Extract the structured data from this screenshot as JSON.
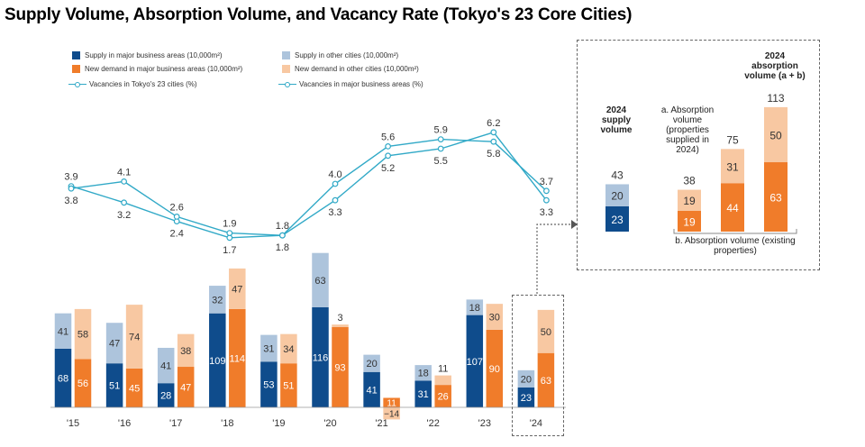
{
  "title": "Supply Volume, Absorption Volume, and Vacancy Rate (Tokyo's 23 Core Cities)",
  "colors": {
    "supply_major": "#0f4c8c",
    "supply_other": "#adc4dc",
    "demand_major": "#f07c2a",
    "demand_other": "#f8c8a2",
    "vacancy_line": "#31a9c7"
  },
  "legend": {
    "supply_major": "Supply in major business areas (10,000m²)",
    "supply_other": "Supply in other cities (10,000m²)",
    "demand_major": "New demand in major business areas (10,000m²)",
    "demand_other": "New demand in other cities (10,000m²)",
    "vacancy_23": "Vacancies in Tokyo's 23 cities (%)",
    "vacancy_major": "Vacancies in major business areas (%)"
  },
  "chart_data": {
    "type": "bar",
    "categories": [
      "'15",
      "'16",
      "'17",
      "'18",
      "'19",
      "'20",
      "'21",
      "'22",
      "'23",
      "'24"
    ],
    "series": [
      {
        "name": "Supply in major business areas (10,000m²)",
        "values": [
          68,
          51,
          28,
          109,
          53,
          116,
          41,
          31,
          107,
          23
        ]
      },
      {
        "name": "Supply in other cities (10,000m²)",
        "values": [
          41,
          47,
          41,
          32,
          31,
          63,
          20,
          18,
          18,
          20
        ]
      },
      {
        "name": "New demand in major business areas (10,000m²)",
        "values": [
          56,
          45,
          47,
          114,
          51,
          93,
          -14,
          26,
          90,
          63
        ]
      },
      {
        "name": "New demand in other cities (10,000m²)",
        "values": [
          58,
          74,
          38,
          47,
          34,
          3,
          11,
          11,
          30,
          50
        ]
      }
    ],
    "lines": [
      {
        "name": "Vacancies in Tokyo's 23 cities (%)",
        "values": [
          3.9,
          3.2,
          2.4,
          1.7,
          1.8,
          3.3,
          5.2,
          5.5,
          6.2,
          3.3
        ]
      },
      {
        "name": "Vacancies in major business areas (%)",
        "values": [
          3.8,
          4.1,
          2.6,
          1.9,
          1.8,
          4.0,
          5.6,
          5.9,
          5.8,
          3.7
        ]
      }
    ],
    "line_labels": [
      {
        "upper": "3.9",
        "lower": "3.8"
      },
      {
        "upper": "4.1",
        "lower": "3.2"
      },
      {
        "upper": "2.6",
        "lower": "2.4"
      },
      {
        "upper": "1.9",
        "lower": "1.7"
      },
      {
        "upper": "1.8",
        "lower": "1.8"
      },
      {
        "upper": "4.0",
        "lower": "3.3"
      },
      {
        "upper": "5.6",
        "lower": "5.2"
      },
      {
        "upper": "5.9",
        "lower": "5.5"
      },
      {
        "upper": "6.2",
        "lower": "5.8"
      },
      {
        "upper": "3.7",
        "lower": "3.3"
      }
    ],
    "bar_labels_2021": {
      "demand_other": "11",
      "demand_major": "−14"
    },
    "highlight": "'24"
  },
  "inset": {
    "supply_header": "2024 supply volume",
    "absorption_a": "a. Absorption volume (properties supplied in 2024)",
    "absorption_b": "b. Absorption volume (existing properties)",
    "absorption_total": "2024 absorption volume (a + b)",
    "bars": [
      {
        "name": "supply",
        "bottom": 23,
        "top": 20,
        "total": 43,
        "total_label": "43"
      },
      {
        "name": "absorption-a",
        "bottom": 19,
        "top": 19,
        "total": 38,
        "total_label": "38"
      },
      {
        "name": "absorption-b",
        "bottom": 44,
        "top": 31,
        "total": 75,
        "total_label": "75"
      },
      {
        "name": "absorption-total",
        "bottom": 63,
        "top": 50,
        "total": 113,
        "total_label": "113"
      }
    ]
  }
}
